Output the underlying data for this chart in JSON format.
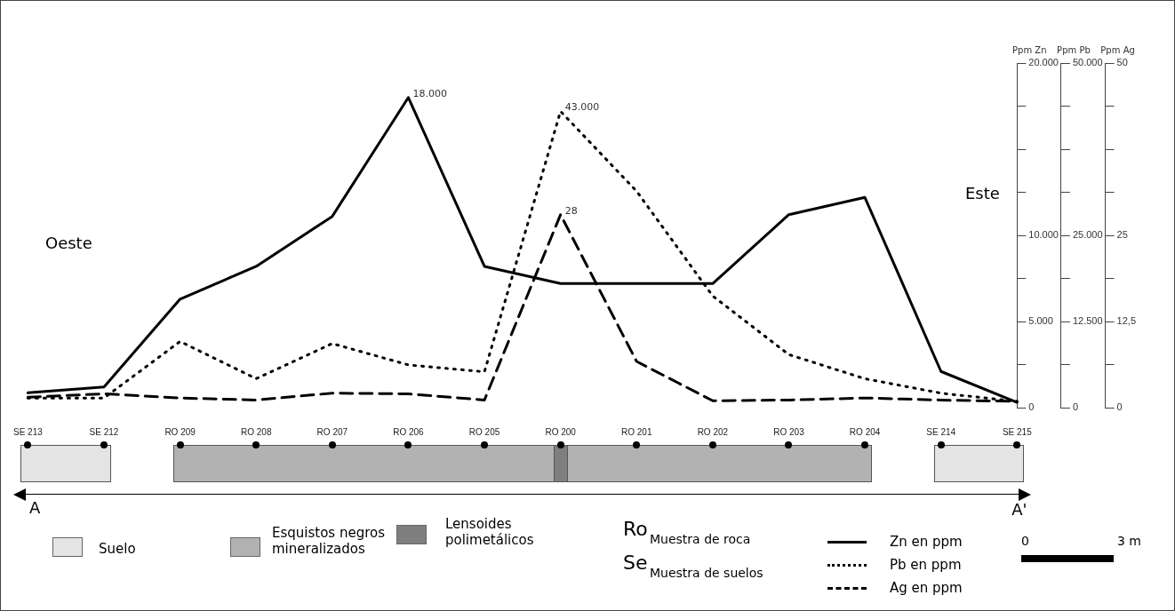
{
  "chart_data": {
    "type": "line",
    "ylabel": "Ppm Zn",
    "y2label": "Ppm Pb",
    "y3label": "Ppm Ag",
    "categories": [
      "SE 213",
      "SE 212",
      "RO 209",
      "RO 208",
      "RO 207",
      "RO 206",
      "RO 205",
      "RO 200",
      "RO 201",
      "RO 202",
      "RO 203",
      "RO 204",
      "SE 214",
      "SE 215"
    ],
    "series": [
      {
        "name": "Zn en ppm",
        "color": "#000000",
        "line_style": "solid",
        "values": [
          860,
          1200,
          6300,
          8200,
          11100,
          18000,
          8200,
          7200,
          7200,
          7200,
          11200,
          12200,
          2100,
          300
        ],
        "value_labels": [
          null,
          null,
          null,
          null,
          null,
          "18.000",
          null,
          null,
          null,
          null,
          null,
          null,
          null,
          null
        ]
      },
      {
        "name": "Pb en ppm",
        "color": "#000000",
        "line_style": "dotted",
        "axis": "y2",
        "values": [
          1400,
          1400,
          9600,
          4200,
          9300,
          6200,
          5200,
          43000,
          31400,
          16200,
          7700,
          4200,
          2100,
          900
        ],
        "value_labels": [
          null,
          null,
          null,
          null,
          null,
          null,
          null,
          "43.000",
          null,
          null,
          null,
          null,
          null,
          null
        ]
      },
      {
        "name": "Ag en ppm",
        "color": "#000000",
        "line_style": "dashed",
        "axis": "y3",
        "values": [
          1.5,
          2.0,
          1.4,
          1.1,
          2.1,
          2.0,
          1.1,
          28,
          6.7,
          1.0,
          1.1,
          1.4,
          1.1,
          0.9
        ],
        "value_labels": [
          null,
          null,
          null,
          null,
          null,
          null,
          null,
          "28",
          null,
          null,
          null,
          null,
          null,
          null
        ]
      }
    ],
    "ylim": [
      0,
      20000
    ],
    "yticks": [
      {
        "value": 0,
        "label": "0"
      },
      {
        "value": 2500,
        "label": null
      },
      {
        "value": 5000,
        "label": "5.000"
      },
      {
        "value": 7500,
        "label": null
      },
      {
        "value": 10000,
        "label": "10.000"
      },
      {
        "value": 12500,
        "label": null
      },
      {
        "value": 15000,
        "label": null
      },
      {
        "value": 17500,
        "label": null
      },
      {
        "value": 20000,
        "label": "20.000"
      }
    ],
    "y2lim": [
      0,
      50000
    ],
    "y2ticks": [
      {
        "value": 0,
        "label": "0"
      },
      {
        "value": 6250,
        "label": null
      },
      {
        "value": 12500,
        "label": "12.500"
      },
      {
        "value": 18750,
        "label": null
      },
      {
        "value": 25000,
        "label": "25.000"
      },
      {
        "value": 31250,
        "label": null
      },
      {
        "value": 37500,
        "label": null
      },
      {
        "value": 43750,
        "label": null
      },
      {
        "value": 50000,
        "label": "50.000"
      }
    ],
    "y3lim": [
      0,
      50
    ],
    "y3ticks": [
      {
        "value": 0,
        "label": "0"
      },
      {
        "value": 6.25,
        "label": null
      },
      {
        "value": 12.5,
        "label": "12,5"
      },
      {
        "value": 18.75,
        "label": null
      },
      {
        "value": 25,
        "label": "25"
      },
      {
        "value": 31.25,
        "label": null
      },
      {
        "value": 37.5,
        "label": null
      },
      {
        "value": 43.75,
        "label": null
      },
      {
        "value": 50,
        "label": "50"
      }
    ],
    "grid": false,
    "marker": "none",
    "legend": "bottom right",
    "annotations": [
      "Oeste",
      "Este",
      "A",
      "A'",
      "Suelo",
      "Esquistos negros mineralizados",
      "Lensoides polimetálicos",
      "Ro",
      "Muestra de roca",
      "Se",
      "Muestra de suelos",
      "0",
      "3 m"
    ]
  }
}
